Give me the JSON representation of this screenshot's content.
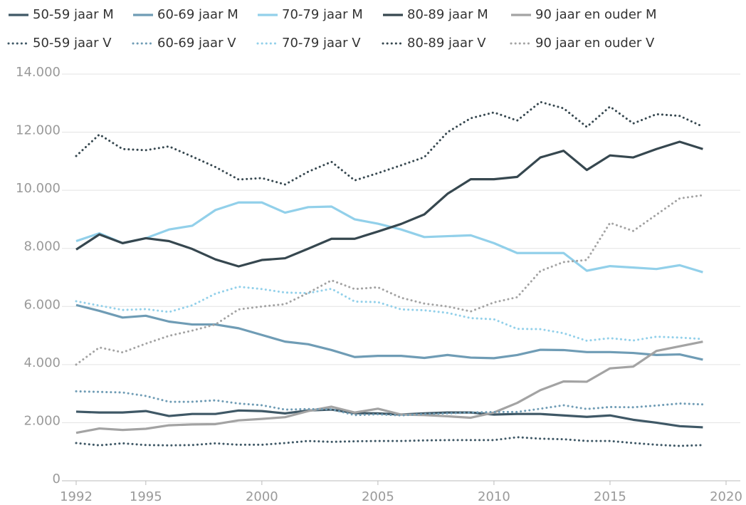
{
  "chart_data": {
    "type": "line",
    "x": [
      1992,
      1993,
      1994,
      1995,
      1996,
      1997,
      1998,
      1999,
      2000,
      2001,
      2002,
      2003,
      2004,
      2005,
      2006,
      2007,
      2008,
      2009,
      2010,
      2011,
      2012,
      2013,
      2014,
      2015,
      2016,
      2017,
      2018,
      2019
    ],
    "xlim": [
      1992,
      2020
    ],
    "xticks": [
      1992,
      1995,
      2000,
      2005,
      2010,
      2015,
      2020
    ],
    "ylim": [
      0,
      14000
    ],
    "yticks": [
      0,
      {
        "value": 2000,
        "label": "2.000"
      },
      {
        "value": 4000,
        "label": "4.000"
      },
      {
        "value": 6000,
        "label": "6.000"
      },
      {
        "value": 8000,
        "label": "8.000"
      },
      {
        "value": 10000,
        "label": "10.000"
      },
      {
        "value": 12000,
        "label": "12.000"
      },
      {
        "value": 14000,
        "label": "14.000"
      }
    ],
    "grid": true,
    "series": [
      {
        "name": "50-59 jaar M",
        "color": "#3f5866",
        "style": "solid",
        "values": [
          2380,
          2350,
          2350,
          2400,
          2230,
          2300,
          2300,
          2420,
          2400,
          2320,
          2420,
          2450,
          2330,
          2320,
          2280,
          2320,
          2350,
          2350,
          2280,
          2300,
          2300,
          2250,
          2200,
          2250,
          2100,
          2000,
          1880,
          1840
        ]
      },
      {
        "name": "60-69 jaar M",
        "color": "#6f9cb5",
        "style": "solid",
        "values": [
          6050,
          5850,
          5620,
          5680,
          5480,
          5380,
          5380,
          5250,
          5020,
          4790,
          4700,
          4500,
          4260,
          4300,
          4300,
          4230,
          4330,
          4240,
          4220,
          4330,
          4510,
          4500,
          4430,
          4430,
          4400,
          4330,
          4350,
          4170
        ]
      },
      {
        "name": "70-79 jaar M",
        "color": "#92d0ea",
        "style": "solid",
        "values": [
          8250,
          8520,
          8180,
          8350,
          8650,
          8780,
          9320,
          9580,
          9580,
          9230,
          9420,
          9440,
          9000,
          8850,
          8650,
          8390,
          8420,
          8450,
          8180,
          7840,
          7840,
          7840,
          7230,
          7390,
          7340,
          7290,
          7420,
          7180
        ]
      },
      {
        "name": "80-89 jaar M",
        "color": "#36474f",
        "style": "solid",
        "values": [
          7960,
          8480,
          8180,
          8350,
          8250,
          7980,
          7620,
          7380,
          7600,
          7660,
          7990,
          8330,
          8330,
          8580,
          8840,
          9170,
          9880,
          10380,
          10380,
          10460,
          11130,
          11360,
          10700,
          11200,
          11130,
          11420,
          11670,
          11420
        ]
      },
      {
        "name": "90 jaar en ouder M",
        "color": "#a3a3a3",
        "style": "solid",
        "values": [
          1650,
          1800,
          1750,
          1790,
          1910,
          1940,
          1950,
          2080,
          2130,
          2190,
          2400,
          2550,
          2350,
          2480,
          2280,
          2260,
          2220,
          2170,
          2350,
          2680,
          3120,
          3420,
          3410,
          3870,
          3930,
          4470,
          4630,
          4790
        ]
      },
      {
        "name": "50-59 jaar V",
        "color": "#3f5866",
        "style": "dotted",
        "values": [
          1300,
          1220,
          1290,
          1230,
          1220,
          1230,
          1290,
          1240,
          1240,
          1300,
          1370,
          1340,
          1360,
          1370,
          1370,
          1390,
          1400,
          1400,
          1400,
          1500,
          1450,
          1430,
          1370,
          1370,
          1300,
          1240,
          1200,
          1230
        ]
      },
      {
        "name": "60-69 jaar V",
        "color": "#6f9cb5",
        "style": "dotted",
        "values": [
          3080,
          3060,
          3040,
          2920,
          2720,
          2720,
          2770,
          2660,
          2600,
          2450,
          2470,
          2460,
          2260,
          2290,
          2250,
          2300,
          2320,
          2350,
          2370,
          2370,
          2480,
          2600,
          2470,
          2540,
          2530,
          2590,
          2660,
          2630
        ]
      },
      {
        "name": "70-79 jaar V",
        "color": "#92d0ea",
        "style": "dotted",
        "values": [
          6180,
          6030,
          5880,
          5910,
          5810,
          6040,
          6440,
          6680,
          6600,
          6480,
          6460,
          6610,
          6170,
          6150,
          5900,
          5870,
          5780,
          5600,
          5560,
          5230,
          5220,
          5080,
          4820,
          4910,
          4830,
          4960,
          4930,
          4880
        ]
      },
      {
        "name": "80-89 jaar V",
        "color": "#36474f",
        "style": "dotted",
        "values": [
          11180,
          11920,
          11420,
          11380,
          11510,
          11160,
          10800,
          10370,
          10420,
          10200,
          10640,
          10980,
          10340,
          10590,
          10860,
          11140,
          12000,
          12480,
          12680,
          12400,
          13040,
          12820,
          12180,
          12880,
          12300,
          12620,
          12560,
          12190
        ]
      },
      {
        "name": "90 jaar en ouder V",
        "color": "#a3a3a3",
        "style": "dotted",
        "values": [
          4000,
          4590,
          4420,
          4720,
          4990,
          5170,
          5380,
          5900,
          6000,
          6080,
          6470,
          6900,
          6600,
          6660,
          6300,
          6100,
          6000,
          5830,
          6140,
          6320,
          7220,
          7530,
          7600,
          8880,
          8600,
          9160,
          9720,
          9830
        ]
      }
    ]
  }
}
